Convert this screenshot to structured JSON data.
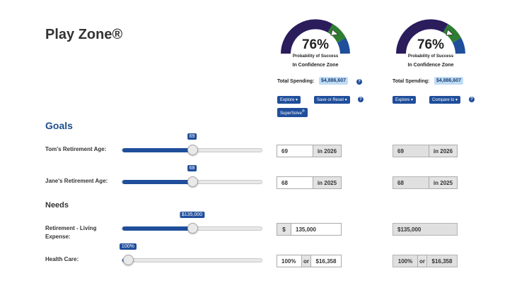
{
  "page": {
    "title": "Play Zone®"
  },
  "scenarios": [
    {
      "probability": "76%",
      "probability_fraction": 0.76,
      "probability_label": "Probability of Success",
      "zone": "In Confidence Zone",
      "total_spending_label": "Total Spending:",
      "total_spending": "$4,886,607",
      "buttons": {
        "explore": "Explore ▾",
        "second": "Save or Reset ▾",
        "supersolve": "SuperSolve"
      },
      "supersolve_sup": "®"
    },
    {
      "probability": "76%",
      "probability_fraction": 0.76,
      "probability_label": "Probability of Success",
      "zone": "In Confidence Zone",
      "total_spending_label": "Total Spending:",
      "total_spending": "$4,886,607",
      "buttons": {
        "explore": "Explore ▾",
        "second": "Compare to ▾"
      }
    }
  ],
  "sections": {
    "goals": "Goals",
    "needs": "Needs"
  },
  "rows": {
    "tom": {
      "label": "Tom's Retirement Age:",
      "slider_tip": "69",
      "slider_level": 0.5,
      "value": "69",
      "year": "in 2026",
      "compare_value": "69",
      "compare_year": "in 2026"
    },
    "jane": {
      "label": "Jane's Retirement Age:",
      "slider_tip": "68",
      "slider_level": 0.5,
      "value": "68",
      "year": "in 2025",
      "compare_value": "68",
      "compare_year": "in 2025"
    },
    "living": {
      "label": "Retirement - Living Expense:",
      "slider_tip": "$135,000",
      "slider_level": 0.5,
      "currency": "$",
      "value": "135,000",
      "compare_value": "$135,000"
    },
    "health": {
      "label": "Health Care:",
      "slider_tip": "100%",
      "slider_level": 0.04,
      "value": "100%",
      "or": "or",
      "amount": "$16,358",
      "compare_value": "100%",
      "compare_or": "or",
      "compare_amount": "$16,358"
    }
  },
  "colors": {
    "accent": "#1f4e9b",
    "gauge_dark": "#2b1c5c",
    "gauge_green": "#2e7d32",
    "gauge_blue": "#1f4e9b"
  },
  "icons": {
    "help": "question-circle-icon",
    "gauge_marker": "triangle-marker-icon"
  }
}
